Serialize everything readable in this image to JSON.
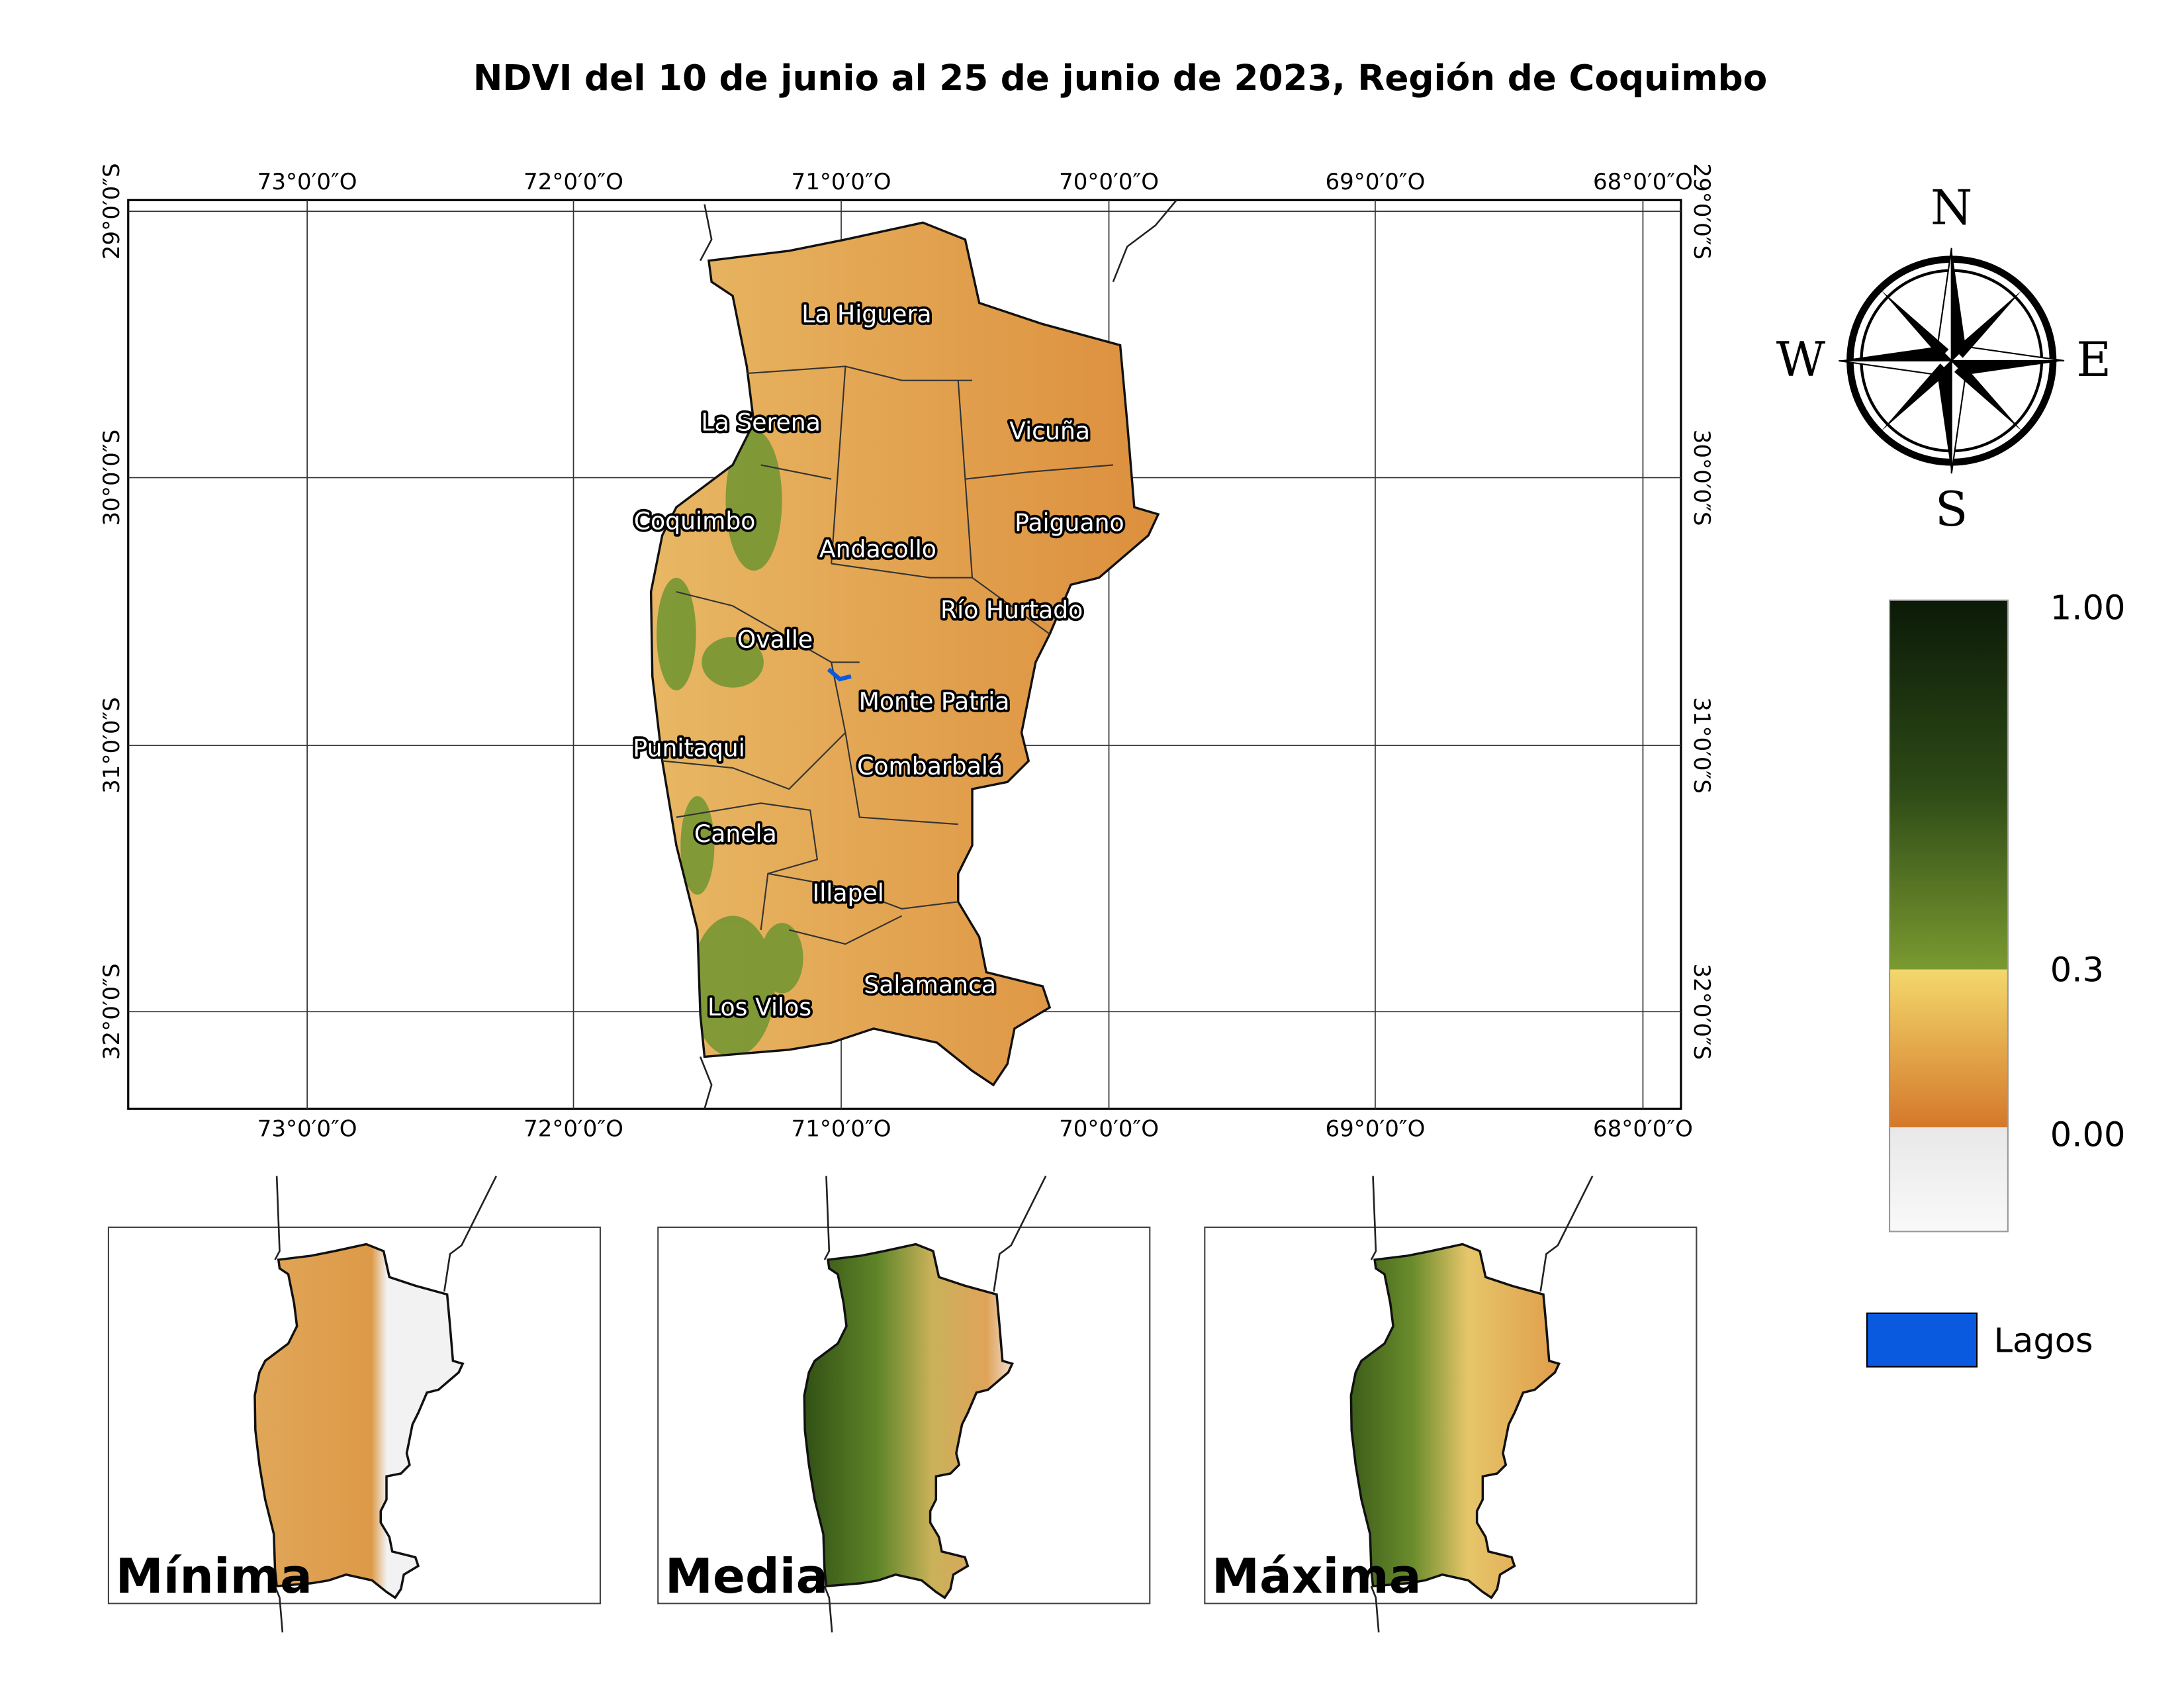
{
  "title": "NDVI del 10 de junio al 25 de junio de 2023, Región de Coquimbo",
  "map": {
    "lon_labels": [
      "73°0′0″O",
      "72°0′0″O",
      "71°0′0″O",
      "70°0′0″O",
      "69°0′0″O",
      "68°0′0″O"
    ],
    "lat_labels": [
      "29°0′0″S",
      "30°0′0″S",
      "31°0′0″S",
      "32°0′0″S"
    ],
    "communes": [
      "La Higuera",
      "La Serena",
      "Vicuña",
      "Coquimbo",
      "Paiguano",
      "Andacollo",
      "Río Hurtado",
      "Ovalle",
      "Monte Patria",
      "Punitaqui",
      "Combarbalá",
      "Canela",
      "Illapel",
      "Salamanca",
      "Los Vilos"
    ]
  },
  "compass": {
    "north": "N",
    "south": "S",
    "east": "E",
    "west": "W"
  },
  "legend": {
    "ndvi_labels": [
      "1.00",
      "0.3",
      "0.00"
    ],
    "lakes": "Lagos"
  },
  "insets": [
    "Mínima",
    "Media",
    "Máxima"
  ]
}
